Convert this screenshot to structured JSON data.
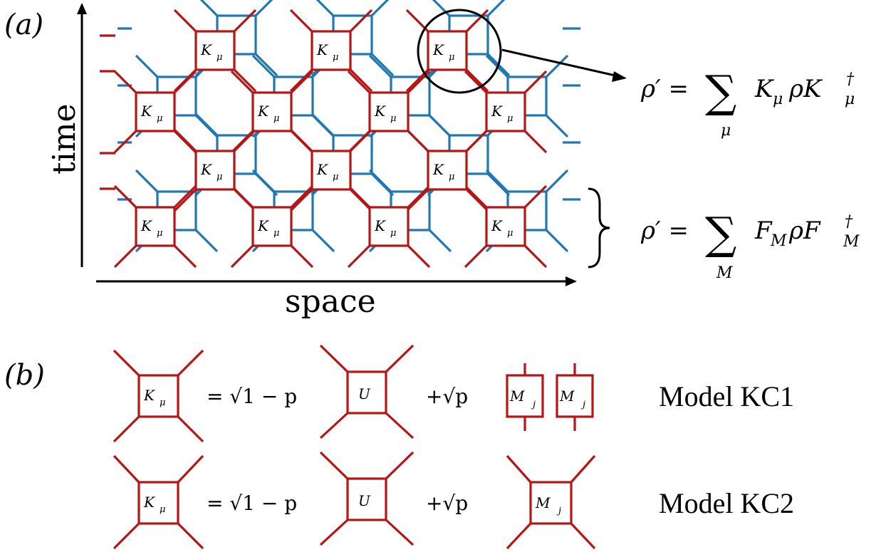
{
  "panel_a": {
    "label": "(a)",
    "y_axis_label": "time",
    "x_axis_label": "space",
    "box_label": "K",
    "box_sub": "μ",
    "eq_top": {
      "lhs": "ρ′ =",
      "sum": "∑",
      "sum_index": "μ",
      "rhs": "K",
      "rhs_sub": "μ",
      "rho": "ρK",
      "dag": "†",
      "rhs_sub2": "μ"
    },
    "eq_bottom": {
      "lhs": "ρ′ =",
      "sum": "∑",
      "sum_index": "M",
      "rhs": "F",
      "rhs_sub": "M",
      "rho": "ρF",
      "dag": "†",
      "rhs_sub2": "M"
    }
  },
  "panel_b": {
    "label": "(b)",
    "row1": {
      "lhs_box": "K",
      "lhs_sub": "μ",
      "term1": "= √1 − p",
      "u_box": "U",
      "term2": "+√p",
      "m_box": "M",
      "m_sub": "j",
      "model": "Model KC1"
    },
    "row2": {
      "lhs_box": "K",
      "lhs_sub": "μ",
      "term1": "= √1 − p",
      "u_box": "U",
      "term2": "+√p",
      "m_box": "M",
      "m_sub": "j",
      "model": "Model KC2"
    }
  }
}
